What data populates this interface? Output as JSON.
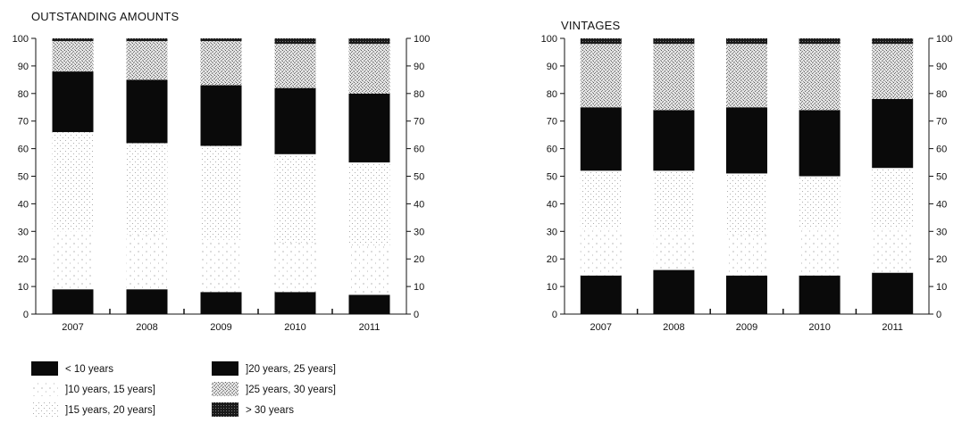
{
  "legend": {
    "items": [
      {
        "label": "< 10 years",
        "key": "lt10"
      },
      {
        "label": "]10 years, 15 years]",
        "key": "b10_15"
      },
      {
        "label": "]15 years, 20 years]",
        "key": "b15_20"
      },
      {
        "label": "]20 years, 25 years]",
        "key": "b20_25"
      },
      {
        "label": "]25 years, 30 years]",
        "key": "b25_30"
      },
      {
        "label": "> 30 years",
        "key": "gt30"
      }
    ]
  },
  "colors": {
    "lt10": "#0a0a0a",
    "b10_15": "#f6f6f6",
    "b15_20": "#eeeeee",
    "b20_25": "#0a0a0a",
    "b25_30": "#c8c8c8",
    "gt30": "#2a2a2a"
  },
  "chart_data": [
    {
      "type": "bar",
      "stacked": true,
      "title": "OUTSTANDING AMOUNTS",
      "categories": [
        "2007",
        "2008",
        "2009",
        "2010",
        "2011"
      ],
      "ylim": [
        0,
        100
      ],
      "yticks": [
        "0",
        "10",
        "20",
        "30",
        "40",
        "50",
        "60",
        "70",
        "80",
        "90",
        "100"
      ],
      "right_axis": true,
      "series": [
        {
          "key": "lt10",
          "values": [
            9,
            9,
            8,
            8,
            7
          ]
        },
        {
          "key": "b10_15",
          "values": [
            21,
            20,
            19,
            18,
            18
          ]
        },
        {
          "key": "b15_20",
          "values": [
            36,
            33,
            34,
            32,
            30
          ]
        },
        {
          "key": "b20_25",
          "values": [
            22,
            23,
            22,
            24,
            25
          ]
        },
        {
          "key": "b25_30",
          "values": [
            11,
            14,
            16,
            16,
            18
          ]
        },
        {
          "key": "gt30",
          "values": [
            1,
            1,
            1,
            2,
            2
          ]
        }
      ]
    },
    {
      "type": "bar",
      "stacked": true,
      "title": "VINTAGES",
      "categories": [
        "2007",
        "2008",
        "2009",
        "2010",
        "2011"
      ],
      "ylim": [
        0,
        100
      ],
      "yticks": [
        "0",
        "10",
        "20",
        "30",
        "40",
        "50",
        "60",
        "70",
        "80",
        "90",
        "100"
      ],
      "right_axis": true,
      "series": [
        {
          "key": "lt10",
          "values": [
            14,
            16,
            14,
            14,
            15
          ]
        },
        {
          "key": "b10_15",
          "values": [
            17,
            14,
            15,
            17,
            16
          ]
        },
        {
          "key": "b15_20",
          "values": [
            21,
            22,
            22,
            19,
            22
          ]
        },
        {
          "key": "b20_25",
          "values": [
            23,
            22,
            24,
            24,
            25
          ]
        },
        {
          "key": "b25_30",
          "values": [
            23,
            24,
            23,
            24,
            20
          ]
        },
        {
          "key": "gt30",
          "values": [
            2,
            2,
            2,
            2,
            2
          ]
        }
      ]
    }
  ]
}
